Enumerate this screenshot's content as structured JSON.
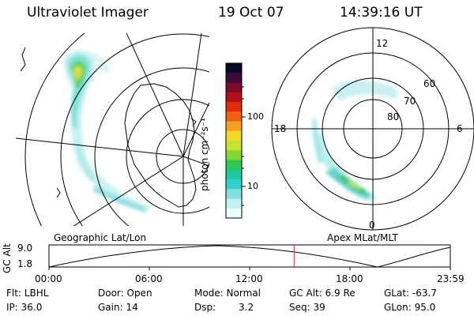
{
  "header": {
    "instrument": "Ultraviolet Imager",
    "date": "19 Oct 07",
    "time": "14:39:16 UT"
  },
  "colorbar": {
    "unit_label": "photon cm⁻²s⁻¹",
    "ticks": [
      "100",
      "10"
    ],
    "colors": [
      "#0a0a28",
      "#3a0a3a",
      "#7a0a2a",
      "#b0101a",
      "#e02a0a",
      "#f06010",
      "#f8a020",
      "#f0d828",
      "#c8e030",
      "#80d830",
      "#30c850",
      "#20c8a0",
      "#30d0d0",
      "#80e0e0",
      "#c0f0f0",
      "#e8ffff"
    ]
  },
  "left_map": {
    "caption": "Geographic Lat/Lon"
  },
  "right_map": {
    "caption": "Apex MLat/MLT",
    "lat_labels": [
      "60",
      "70",
      "80"
    ],
    "mlt_labels": {
      "top": "12",
      "left": "18",
      "right": "6",
      "bottom": "0"
    }
  },
  "orbit": {
    "ylabel": "GC Alt",
    "ymax": "9.0",
    "ymin": "1.8",
    "xticks": [
      "00:00",
      "06:00",
      "12:00",
      "18:00",
      "23:59"
    ],
    "current_time_fraction": 0.6108
  },
  "info": {
    "flt": "Flt: LBHL",
    "ip": "IP: 36.0",
    "door": "Door: Open",
    "gain": "Gain: 14",
    "mode": "Mode: Normal",
    "dsp_label": "Dsp:",
    "dsp_value": "3.2",
    "gcalt": "GC Alt: 6.9 Re",
    "seq": "Seq: 39",
    "glat": "GLat: -63.7",
    "glon": "GLon: 95.0"
  }
}
